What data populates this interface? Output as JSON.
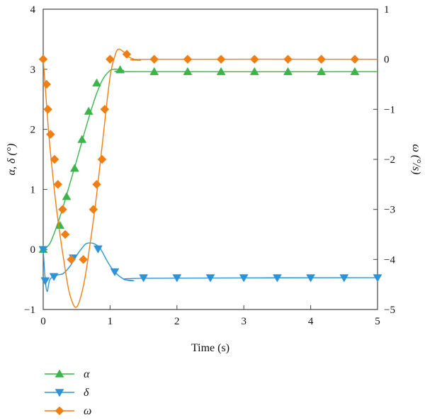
{
  "chart_data": {
    "type": "line",
    "xlabel": "Time (s)",
    "ylabel": "α, δ (°)",
    "y2label": "ω (°/s)",
    "xlim": [
      0,
      5
    ],
    "ylim": [
      -1,
      4
    ],
    "y2lim": [
      -5,
      1
    ],
    "grid": false,
    "legend_position": "bottom-left",
    "x_ticks": [
      "0",
      "1",
      "2",
      "3",
      "4",
      "5"
    ],
    "y_ticks": [
      "−1",
      "0",
      "1",
      "2",
      "3",
      "4"
    ],
    "y2_ticks": [
      "−5",
      "−4",
      "−3",
      "−2",
      "−1",
      "0",
      "1"
    ],
    "series": [
      {
        "name": "α",
        "axis": "left",
        "color": "#3cb44b",
        "marker": "triangle-up",
        "curve": [
          [
            0,
            0
          ],
          [
            0.1,
            0.1
          ],
          [
            0.2,
            0.38
          ],
          [
            0.3,
            0.72
          ],
          [
            0.4,
            1.1
          ],
          [
            0.5,
            1.48
          ],
          [
            0.6,
            1.88
          ],
          [
            0.7,
            2.26
          ],
          [
            0.8,
            2.6
          ],
          [
            0.9,
            2.85
          ],
          [
            1.0,
            2.98
          ],
          [
            1.05,
            3.0
          ],
          [
            1.1,
            3.0
          ],
          [
            1.2,
            2.98
          ],
          [
            1.4,
            2.96
          ],
          [
            5,
            2.96
          ]
        ],
        "markers": [
          [
            0,
            0
          ],
          [
            0.25,
            0.4
          ],
          [
            0.35,
            0.88
          ],
          [
            0.47,
            1.35
          ],
          [
            0.58,
            1.83
          ],
          [
            0.68,
            2.3
          ],
          [
            0.8,
            2.77
          ],
          [
            1.15,
            2.99
          ],
          [
            1.66,
            2.96
          ],
          [
            2.16,
            2.96
          ],
          [
            2.66,
            2.96
          ],
          [
            3.16,
            2.96
          ],
          [
            3.66,
            2.96
          ],
          [
            4.16,
            2.96
          ],
          [
            4.66,
            2.96
          ]
        ]
      },
      {
        "name": "δ",
        "axis": "left",
        "color": "#2e93d6",
        "marker": "triangle-down",
        "curve": [
          [
            0,
            0
          ],
          [
            0.03,
            -0.5
          ],
          [
            0.06,
            -0.7
          ],
          [
            0.1,
            -0.5
          ],
          [
            0.2,
            -0.43
          ],
          [
            0.3,
            -0.4
          ],
          [
            0.4,
            -0.28
          ],
          [
            0.5,
            -0.1
          ],
          [
            0.6,
            0.05
          ],
          [
            0.65,
            0.1
          ],
          [
            0.75,
            0.1
          ],
          [
            0.85,
            0.02
          ],
          [
            0.95,
            -0.18
          ],
          [
            1.05,
            -0.35
          ],
          [
            1.2,
            -0.49
          ],
          [
            1.35,
            -0.52
          ],
          [
            1.5,
            -0.48
          ],
          [
            5,
            -0.47
          ]
        ],
        "markers": [
          [
            0,
            0
          ],
          [
            0.03,
            -0.52
          ],
          [
            0.16,
            -0.45
          ],
          [
            0.45,
            -0.14
          ],
          [
            0.82,
            0.01
          ],
          [
            1.07,
            -0.37
          ],
          [
            1.5,
            -0.47
          ],
          [
            2.0,
            -0.47
          ],
          [
            2.5,
            -0.47
          ],
          [
            3.0,
            -0.47
          ],
          [
            3.5,
            -0.47
          ],
          [
            4.0,
            -0.47
          ],
          [
            4.5,
            -0.47
          ],
          [
            5.0,
            -0.47
          ]
        ]
      },
      {
        "name": "ω",
        "axis": "right",
        "color": "#f07f13",
        "marker": "diamond",
        "curve": [
          [
            0,
            0
          ],
          [
            0.05,
            -0.9
          ],
          [
            0.1,
            -1.75
          ],
          [
            0.2,
            -3.0
          ],
          [
            0.3,
            -3.95
          ],
          [
            0.38,
            -4.6
          ],
          [
            0.45,
            -4.9
          ],
          [
            0.5,
            -4.95
          ],
          [
            0.55,
            -4.8
          ],
          [
            0.62,
            -4.4
          ],
          [
            0.7,
            -3.7
          ],
          [
            0.8,
            -2.7
          ],
          [
            0.9,
            -1.5
          ],
          [
            1.0,
            -0.35
          ],
          [
            1.08,
            0.1
          ],
          [
            1.13,
            0.2
          ],
          [
            1.2,
            0.15
          ],
          [
            1.3,
            0.03
          ],
          [
            1.45,
            -0.02
          ],
          [
            1.6,
            0.0
          ],
          [
            5,
            0.0
          ]
        ],
        "markers": [
          [
            0,
            0
          ],
          [
            0.05,
            -0.5
          ],
          [
            0.07,
            -1.0
          ],
          [
            0.11,
            -1.5
          ],
          [
            0.17,
            -2.0
          ],
          [
            0.22,
            -2.5
          ],
          [
            0.29,
            -3.0
          ],
          [
            0.33,
            -3.5
          ],
          [
            0.42,
            -4.0
          ],
          [
            0.6,
            -4.0
          ],
          [
            0.75,
            -3.0
          ],
          [
            0.8,
            -2.5
          ],
          [
            0.88,
            -2.0
          ],
          [
            0.92,
            -1.0
          ],
          [
            1.0,
            0.0
          ],
          [
            1.25,
            0.1
          ],
          [
            1.66,
            0.0
          ],
          [
            2.16,
            0.0
          ],
          [
            2.66,
            0.0
          ],
          [
            3.16,
            0.0
          ],
          [
            3.66,
            0.0
          ],
          [
            4.16,
            0.0
          ],
          [
            4.66,
            0.0
          ]
        ]
      }
    ]
  }
}
